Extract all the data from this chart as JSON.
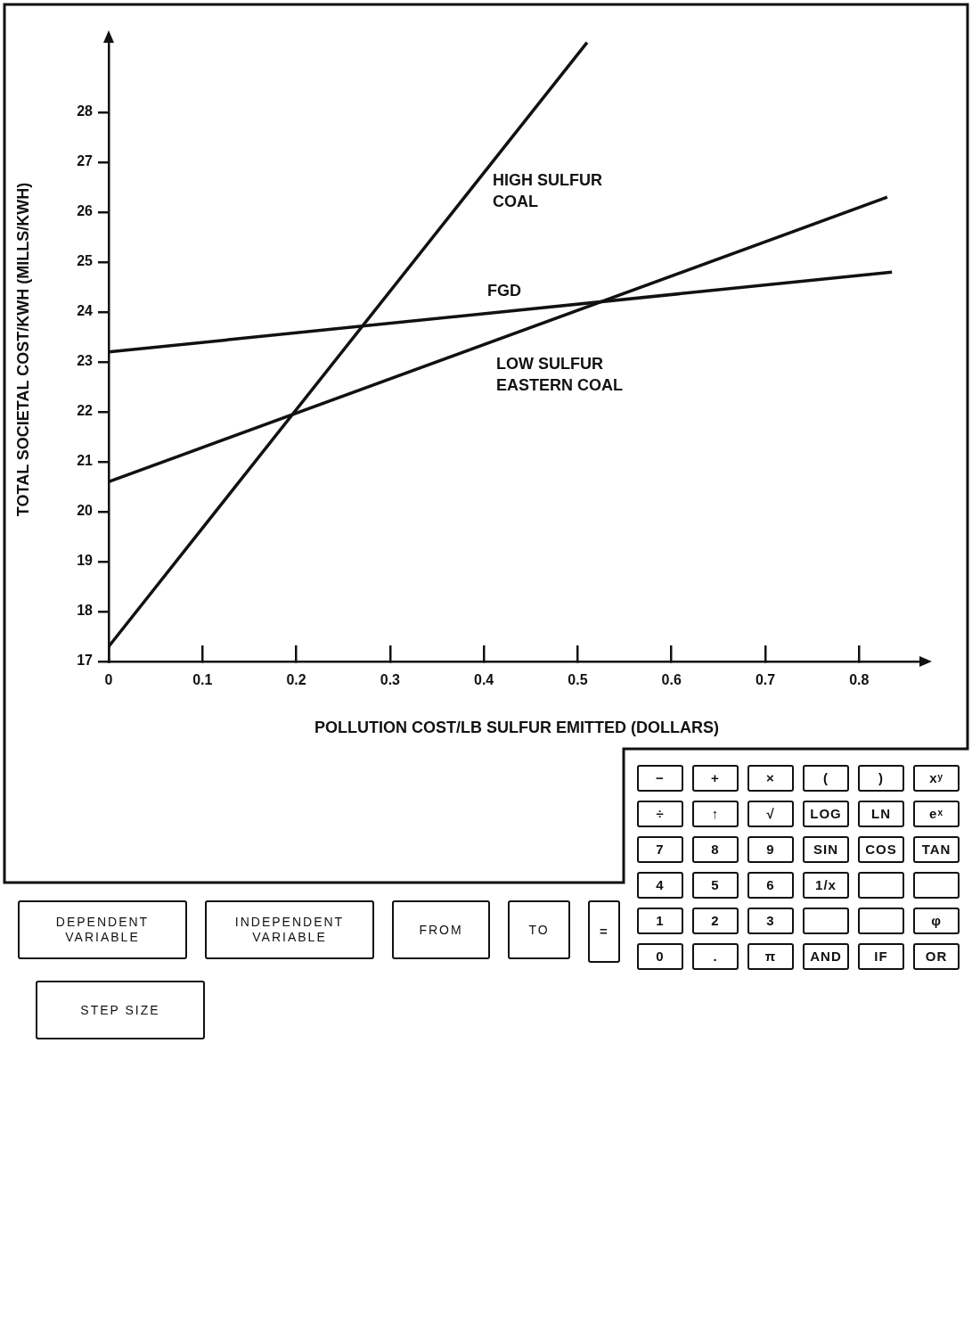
{
  "chart_data": {
    "type": "line",
    "xlabel": "POLLUTION COST/LB SULFUR EMITTED (DOLLARS)",
    "ylabel": "TOTAL SOCIETAL COST/KWH (MILLS/KWH)",
    "xlim": [
      0,
      0.87
    ],
    "xticks": [
      0,
      0.1,
      0.2,
      0.3,
      0.4,
      0.5,
      0.6,
      0.7,
      0.8
    ],
    "ylim": [
      17,
      29.5
    ],
    "yticks": [
      17,
      18,
      19,
      20,
      21,
      22,
      23,
      24,
      25,
      26,
      27,
      28
    ],
    "grid": false,
    "legend": false,
    "marker": "none",
    "line_style": "solid",
    "series": [
      {
        "name": "HIGH SULFUR COAL",
        "color": "#111111",
        "x": [
          0,
          0.51
        ],
        "values": [
          17.3,
          29.4
        ]
      },
      {
        "name": "FGD",
        "color": "#111111",
        "x": [
          0,
          0.835
        ],
        "values": [
          23.2,
          24.8
        ]
      },
      {
        "name": "LOW SULFUR EASTERN COAL",
        "color": "#111111",
        "x": [
          0,
          0.83
        ],
        "values": [
          20.6,
          26.3
        ]
      }
    ],
    "annotations": [
      "DEPENDENT VARIABLE",
      "INDEPENDENT VARIABLE",
      "FROM",
      "TO",
      "STEP SIZE",
      "=",
      "−",
      "+",
      "×",
      "(",
      ")",
      "xʸ",
      "÷",
      "↑",
      "√",
      "LOG",
      "LN",
      "eˣ",
      "7",
      "8",
      "9",
      "SIN",
      "COS",
      "TAN",
      "4",
      "5",
      "6",
      "1/x",
      "1",
      "2",
      "3",
      "φ",
      "0",
      ".",
      "π",
      "AND",
      "IF",
      "OR"
    ]
  }
}
